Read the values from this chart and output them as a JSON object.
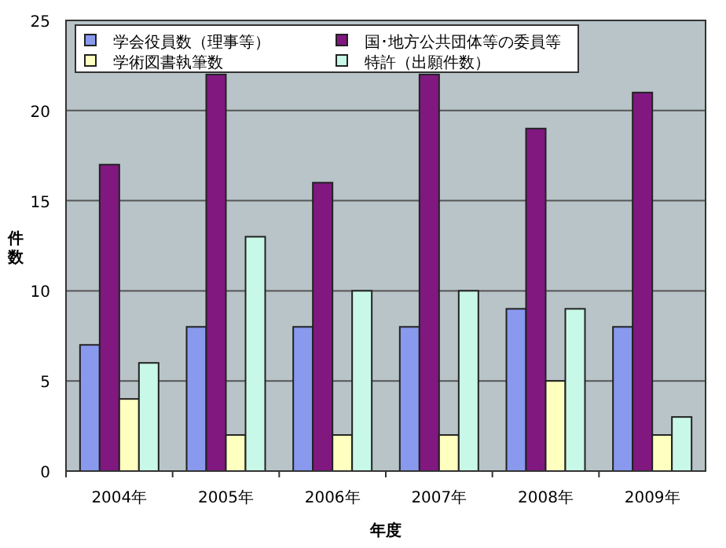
{
  "chart_data": {
    "type": "bar",
    "xlabel": "年度",
    "ylabel": "件数",
    "categories": [
      "2004年",
      "2005年",
      "2006年",
      "2007年",
      "2008年",
      "2009年"
    ],
    "series": [
      {
        "name": "学会役員数（理事等）",
        "color": "#8899ee",
        "values": [
          7,
          8,
          8,
          8,
          9,
          8
        ]
      },
      {
        "name": "国･地方公共団体等の委員等",
        "color": "#801880",
        "values": [
          17,
          22,
          16,
          22,
          19,
          21
        ]
      },
      {
        "name": "学術図書執筆数",
        "color": "#ffffc0",
        "values": [
          4,
          2,
          2,
          2,
          5,
          2
        ]
      },
      {
        "name": "特許（出願件数）",
        "color": "#c8f8e8",
        "values": [
          6,
          13,
          10,
          10,
          9,
          3
        ]
      }
    ],
    "ylim": [
      0,
      25
    ],
    "yticks": [
      0,
      5,
      10,
      15,
      20,
      25
    ],
    "grid": "y",
    "legend": "top"
  }
}
